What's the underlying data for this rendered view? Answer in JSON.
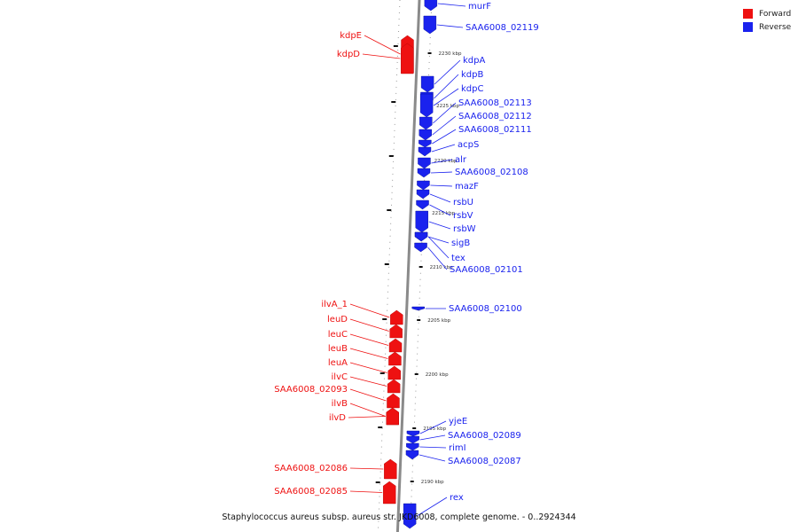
{
  "colors": {
    "forward": "#ee1111",
    "reverse": "#1a22ee",
    "backbone": "#8a8a8a"
  },
  "legend": [
    {
      "label": "Forward",
      "color": "#ee1111"
    },
    {
      "label": "Reverse",
      "color": "#1a22ee"
    }
  ],
  "caption": "Staphylococcus aureus subsp. aureus str. JKD6008, complete genome. - 0..2924344",
  "kbp_labels": [
    "2230 kbp",
    "2225 kbp",
    "2220 kbp",
    "2215 kbp",
    "2210 kbp",
    "2205 kbp",
    "2200 kbp",
    "2195 kbp",
    "2190 kbp"
  ],
  "forward_genes": [
    "kdpE",
    "kdpD",
    "ilvA_1",
    "leuD",
    "leuC",
    "leuB",
    "leuA",
    "ilvC",
    "SAA6008_02093",
    "ilvB",
    "ilvD",
    "SAA6008_02086",
    "SAA6008_02085"
  ],
  "reverse_genes": [
    "murF",
    "SAA6008_02119",
    "kdpA",
    "kdpB",
    "kdpC",
    "SAA6008_02113",
    "SAA6008_02112",
    "SAA6008_02111",
    "acpS",
    "alr",
    "SAA6008_02108",
    "mazF",
    "rsbU",
    "rsbV",
    "rsbW",
    "sigB",
    "tex",
    "SAA6008_02101",
    "SAA6008_02100",
    "yjeE",
    "SAA6008_02089",
    "rimI",
    "SAA6008_02087",
    "rex"
  ]
}
